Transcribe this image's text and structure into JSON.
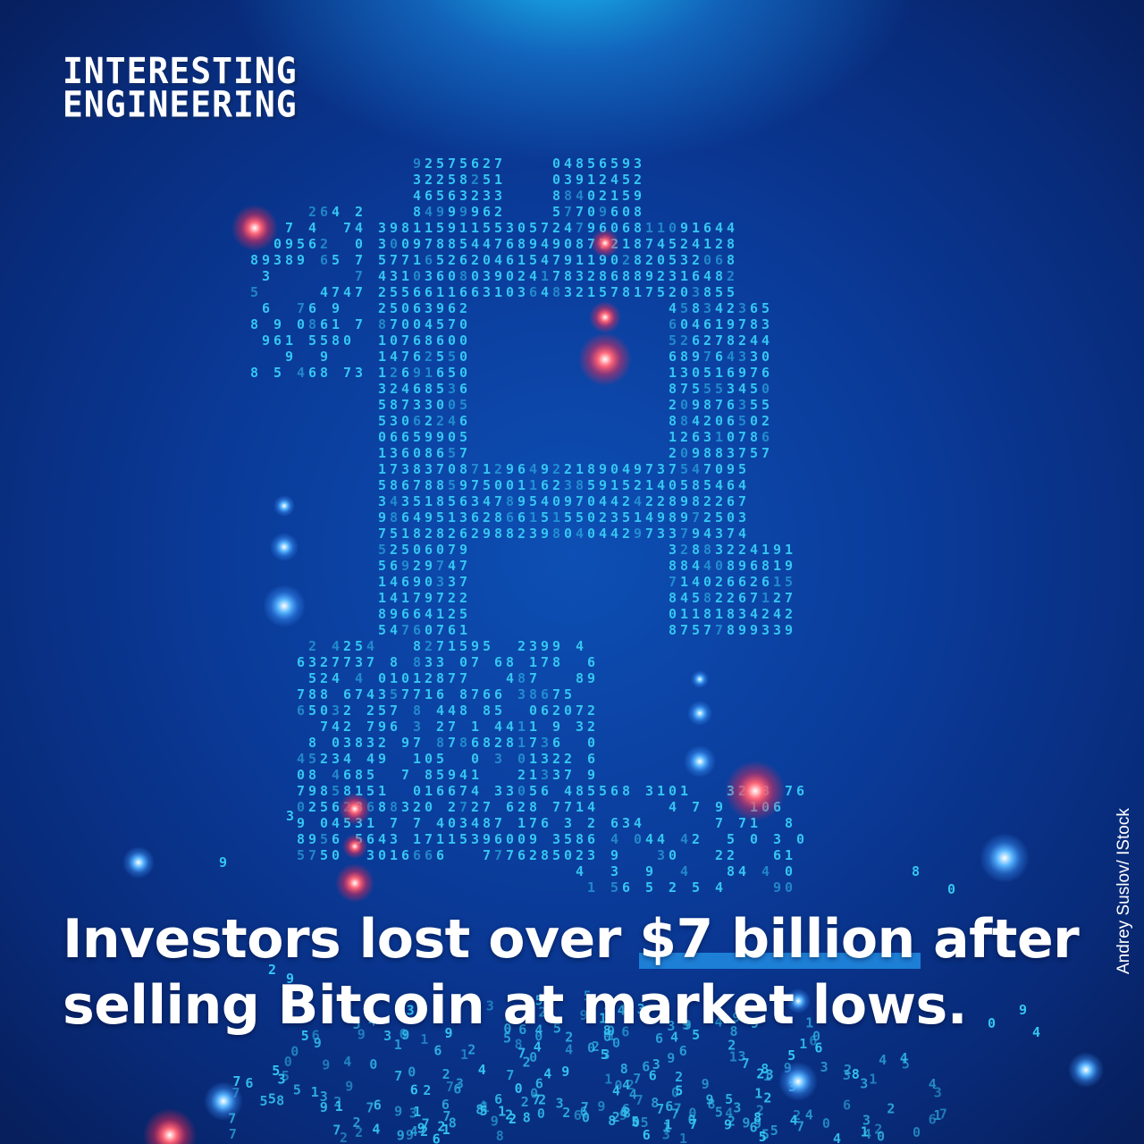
{
  "brand": {
    "line1": "INTERESTING",
    "line2": "ENGINEERING"
  },
  "headline": {
    "before": "Investors lost over ",
    "highlight": "$7 billion",
    "after": " after",
    "line2": "selling Bitcoin at market lows."
  },
  "credit": "Andrey Suslov/ IStock",
  "colors": {
    "background_top": "#19b7ee",
    "background": "#0a3a98",
    "digits": "#35c6f2",
    "glow_red": "#ff2a4a",
    "glow_blue": "#3aa0ff",
    "highlight": "#1d7fd6"
  },
  "image": {
    "subject": "bitcoin-symbol-made-of-digits"
  }
}
